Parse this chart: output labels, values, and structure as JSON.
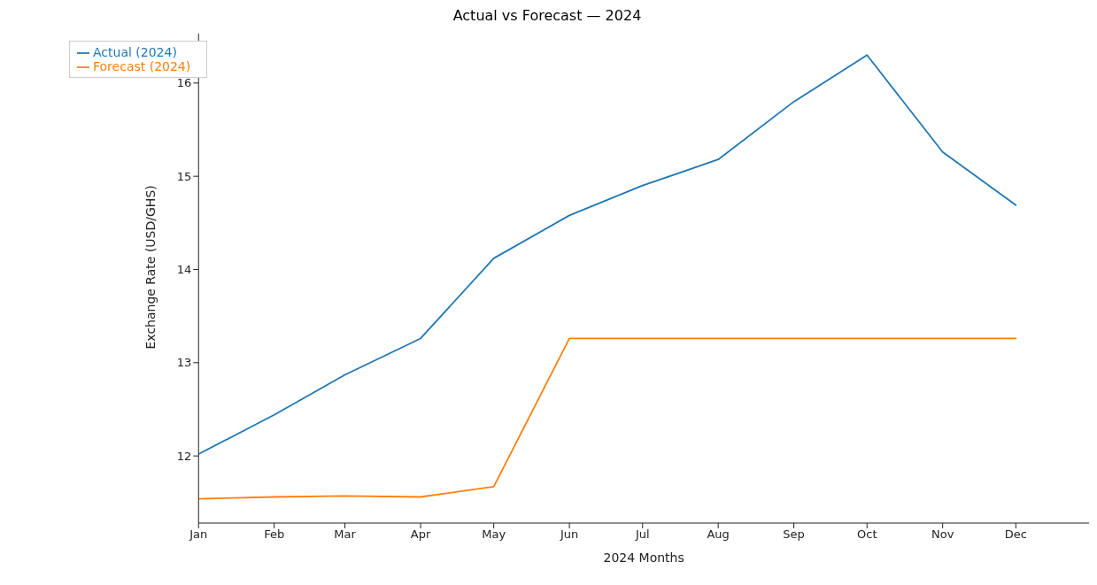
{
  "chart_data": {
    "type": "line",
    "title": "Actual vs Forecast — 2024",
    "xlabel": "2024 Months",
    "ylabel": "Exchange Rate (USD/GHS)",
    "x": [
      "2024-01",
      "2024-02",
      "2024-03",
      "2024-04",
      "2024-05",
      "2024-06",
      "2024-07",
      "2024-08",
      "2024-09",
      "2024-10",
      "2024-11",
      "2024-12"
    ],
    "series": [
      {
        "name": "Actual (2024)",
        "color": "#1f77b4",
        "values": [
          12.02,
          12.44,
          12.87,
          13.26,
          14.12,
          14.58,
          14.9,
          15.18,
          15.8,
          16.3,
          15.26,
          14.69
        ]
      },
      {
        "name": "Forecast (2024)",
        "color": "#ff7f0e",
        "values": [
          11.54,
          11.56,
          11.57,
          11.56,
          11.67,
          13.26,
          13.26,
          13.26,
          13.26,
          13.26,
          13.26,
          13.26
        ]
      }
    ],
    "xlim": [
      "2024-01-01",
      "2024-12-31"
    ],
    "xticks": [
      {
        "value": "2024-01-01",
        "label": "Jan"
      },
      {
        "value": "2024-02-01",
        "label": "Feb"
      },
      {
        "value": "2024-03-01",
        "label": "Mar"
      },
      {
        "value": "2024-04-01",
        "label": "Apr"
      },
      {
        "value": "2024-05-01",
        "label": "May"
      },
      {
        "value": "2024-06-01",
        "label": "Jun"
      },
      {
        "value": "2024-07-01",
        "label": "Jul"
      },
      {
        "value": "2024-08-01",
        "label": "Aug"
      },
      {
        "value": "2024-09-01",
        "label": "Sep"
      },
      {
        "value": "2024-10-01",
        "label": "Oct"
      },
      {
        "value": "2024-11-01",
        "label": "Nov"
      },
      {
        "value": "2024-12-01",
        "label": "Dec"
      }
    ],
    "ylim": [
      11.28,
      16.53
    ],
    "yticks": [
      12,
      13,
      14,
      15,
      16
    ],
    "legend": "top left",
    "grid": false,
    "marker": "none",
    "line_style": "solid"
  }
}
